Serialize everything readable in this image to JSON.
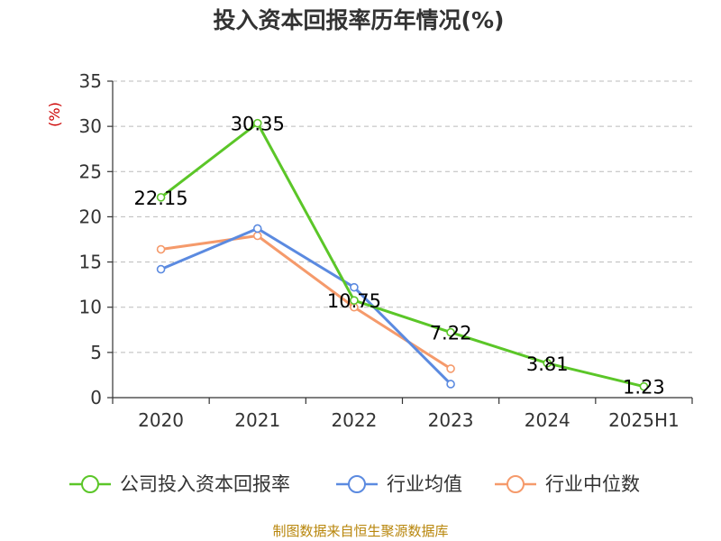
{
  "chart_data": {
    "type": "line",
    "title": "投入资本回报率历年情况(%)",
    "ylabel": "(%)",
    "categories": [
      "2020",
      "2021",
      "2022",
      "2023",
      "2024",
      "2025H1"
    ],
    "ylim": [
      0,
      35
    ],
    "yticks": [
      0,
      5,
      10,
      15,
      20,
      25,
      30,
      35
    ],
    "grid": true,
    "legend_position": "bottom",
    "series": [
      {
        "name": "公司投入资本回报率",
        "color": "#5bc628",
        "values": [
          22.15,
          30.35,
          10.75,
          7.22,
          3.81,
          1.23
        ],
        "labels": [
          "22.15",
          "30.35",
          "10.75",
          "7.22",
          "3.81",
          "1.23"
        ]
      },
      {
        "name": "行业均值",
        "color": "#5b8ae0",
        "values": [
          14.2,
          18.7,
          12.2,
          1.5,
          null,
          null
        ]
      },
      {
        "name": "行业中位数",
        "color": "#f59a6b",
        "values": [
          16.4,
          17.9,
          10.0,
          3.2,
          null,
          null
        ]
      }
    ],
    "source": "制图数据来自恒生聚源数据库"
  }
}
